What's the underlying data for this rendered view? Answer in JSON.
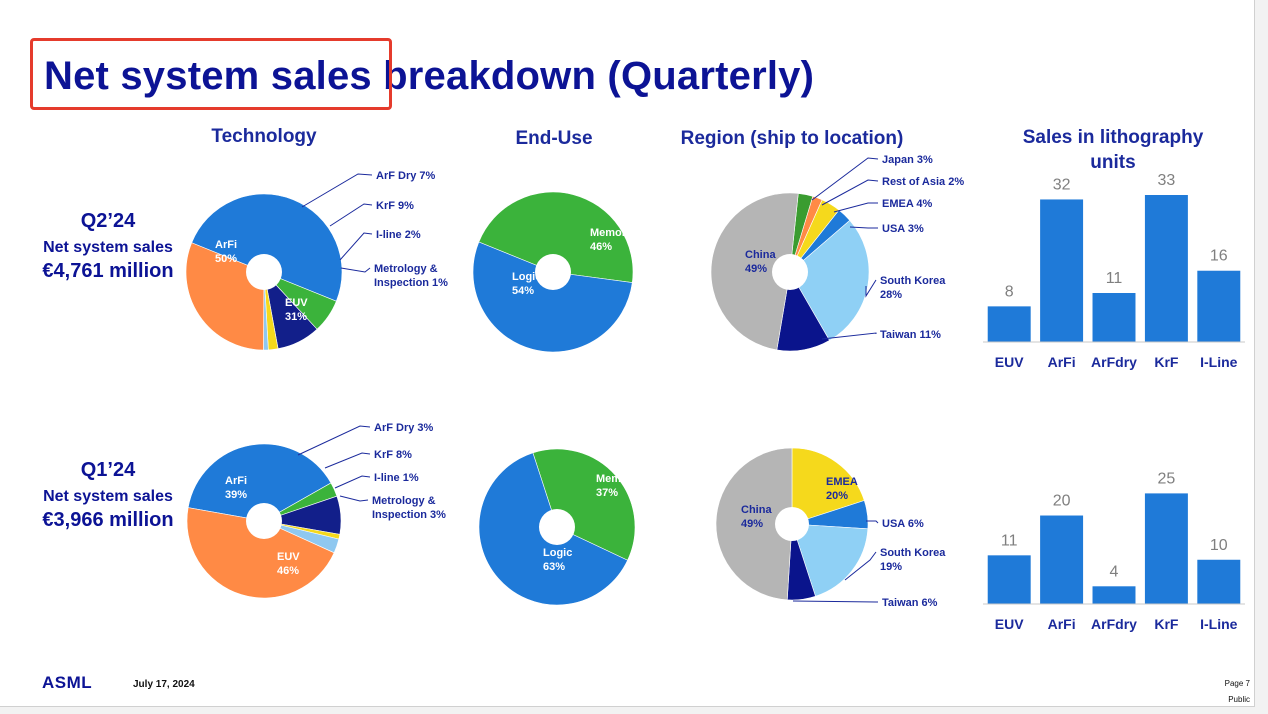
{
  "title": "Net system sales breakdown (Quarterly)",
  "headers": {
    "technology": "Technology",
    "end_use": "End-Use",
    "region": "Region (ship to location)",
    "units": "Sales in lithography units"
  },
  "quarters": [
    {
      "quarter": "Q2’24",
      "sales_label": "Net system sales",
      "amount": "€4,761 million"
    },
    {
      "quarter": "Q1’24",
      "sales_label": "Net system sales",
      "amount": "€3,966 million"
    }
  ],
  "footer": {
    "logo": "ASML",
    "date": "July 17, 2024",
    "page": "Page 7",
    "classification": "Public"
  },
  "colors": {
    "title": "#0c1395",
    "blue": "#1f7ad8",
    "highlight": "#e53b2c"
  },
  "chart_data": [
    {
      "type": "pie",
      "group": "technology",
      "quarter": "Q2’24",
      "slices": [
        {
          "name": "ArFi",
          "value": 50,
          "color": "#1f7ad8",
          "label": "ArFi\n50%",
          "inside": true
        },
        {
          "name": "ArF Dry",
          "value": 7,
          "color": "#3bb33b",
          "label": "ArF Dry 7%"
        },
        {
          "name": "KrF",
          "value": 9,
          "color": "#121f8a",
          "label": "KrF 9%"
        },
        {
          "name": "I-line",
          "value": 2,
          "color": "#f5d91c",
          "label": "I-line 2%"
        },
        {
          "name": "Metrology & Inspection",
          "value": 1,
          "color": "#8fc8f0",
          "label": "Metrology &\nInspection 1%"
        },
        {
          "name": "EUV",
          "value": 31,
          "color": "#ff8a45",
          "label": "EUV\n31%",
          "inside": true
        }
      ]
    },
    {
      "type": "pie",
      "group": "end_use",
      "quarter": "Q2’24",
      "slices": [
        {
          "name": "Memory",
          "value": 46,
          "color": "#3bb33b",
          "label": "Memory\n46%",
          "inside": true
        },
        {
          "name": "Logic",
          "value": 54,
          "color": "#1f7ad8",
          "label": "Logic\n54%",
          "inside": true
        }
      ]
    },
    {
      "type": "pie",
      "group": "region",
      "quarter": "Q2’24",
      "slices": [
        {
          "name": "Japan",
          "value": 3,
          "color": "#3a9c30",
          "label": "Japan 3%"
        },
        {
          "name": "Rest of Asia",
          "value": 2,
          "color": "#ff8a45",
          "label": "Rest of Asia 2%"
        },
        {
          "name": "EMEA",
          "value": 4,
          "color": "#f5d91c",
          "label": "EMEA 4%"
        },
        {
          "name": "USA",
          "value": 3,
          "color": "#1f7ad8",
          "label": "USA 3%"
        },
        {
          "name": "South Korea",
          "value": 28,
          "color": "#8fd0f5",
          "label": "South Korea\n28%"
        },
        {
          "name": "Taiwan",
          "value": 11,
          "color": "#0a148c",
          "label": "Taiwan 11%"
        },
        {
          "name": "China",
          "value": 49,
          "color": "#b5b5b5",
          "label": "China\n49%",
          "inside": true
        }
      ]
    },
    {
      "type": "bar",
      "group": "units",
      "quarter": "Q2’24",
      "categories": [
        "EUV",
        "ArFi",
        "ArFdry",
        "KrF",
        "I-Line"
      ],
      "values": [
        8,
        32,
        11,
        33,
        16
      ]
    },
    {
      "type": "pie",
      "group": "technology",
      "quarter": "Q1’24",
      "slices": [
        {
          "name": "ArFi",
          "value": 39,
          "color": "#1f7ad8",
          "label": "ArFi\n39%",
          "inside": true
        },
        {
          "name": "ArF Dry",
          "value": 3,
          "color": "#3bb33b",
          "label": "ArF Dry 3%"
        },
        {
          "name": "KrF",
          "value": 8,
          "color": "#121f8a",
          "label": "KrF 8%"
        },
        {
          "name": "I-line",
          "value": 1,
          "color": "#f5d91c",
          "label": "I-line 1%"
        },
        {
          "name": "Metrology & Inspection",
          "value": 3,
          "color": "#8fc8f0",
          "label": "Metrology &\nInspection 3%"
        },
        {
          "name": "EUV",
          "value": 46,
          "color": "#ff8a45",
          "label": "EUV\n46%",
          "inside": true
        }
      ]
    },
    {
      "type": "pie",
      "group": "end_use",
      "quarter": "Q1’24",
      "slices": [
        {
          "name": "Memory",
          "value": 37,
          "color": "#3bb33b",
          "label": "Memory\n37%",
          "inside": true
        },
        {
          "name": "Logic",
          "value": 63,
          "color": "#1f7ad8",
          "label": "Logic\n63%",
          "inside": true
        }
      ]
    },
    {
      "type": "pie",
      "group": "region",
      "quarter": "Q1’24",
      "slices": [
        {
          "name": "EMEA",
          "value": 20,
          "color": "#f5d91c",
          "label": "EMEA\n20%",
          "inside": true
        },
        {
          "name": "USA",
          "value": 6,
          "color": "#1f7ad8",
          "label": "USA 6%"
        },
        {
          "name": "South Korea",
          "value": 19,
          "color": "#8fd0f5",
          "label": "South Korea\n19%"
        },
        {
          "name": "Taiwan",
          "value": 6,
          "color": "#0a148c",
          "label": "Taiwan 6%"
        },
        {
          "name": "China",
          "value": 49,
          "color": "#b5b5b5",
          "label": "China\n49%",
          "inside": true
        }
      ]
    },
    {
      "type": "bar",
      "group": "units",
      "quarter": "Q1’24",
      "categories": [
        "EUV",
        "ArFi",
        "ArFdry",
        "KrF",
        "I-Line"
      ],
      "values": [
        11,
        20,
        4,
        25,
        10
      ]
    }
  ]
}
